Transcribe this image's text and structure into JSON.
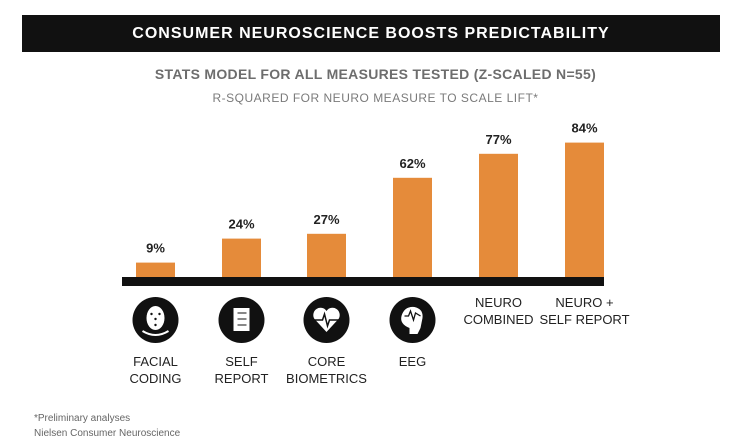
{
  "title": "CONSUMER NEUROSCIENCE BOOSTS PREDICTABILITY",
  "subtitle": "STATS MODEL FOR ALL MEASURES TESTED (Z-SCALED N=55)",
  "subtitle2": "R-SQUARED FOR NEURO MEASURE TO SCALE LIFT*",
  "footnotes": [
    "*Preliminary analyses",
    "Nielsen Consumer Neuroscience"
  ],
  "colors": {
    "bar": "#e58b3a",
    "axis": "#111111",
    "title_bg": "#111111"
  },
  "chart_data": {
    "type": "bar",
    "title": "STATS MODEL FOR ALL MEASURES TESTED (Z-SCALED N=55)",
    "subtitle": "R-SQUARED FOR NEURO MEASURE TO SCALE LIFT*",
    "categories": [
      {
        "line1": "FACIAL",
        "line2": "CODING",
        "icon": "facial-coding-icon"
      },
      {
        "line1": "SELF",
        "line2": "REPORT",
        "icon": "checklist-icon"
      },
      {
        "line1": "CORE",
        "line2": "BIOMETRICS",
        "icon": "heart-pulse-icon"
      },
      {
        "line1": "EEG",
        "line2": "",
        "icon": "brain-wave-icon"
      },
      {
        "line1": "NEURO",
        "line2": "COMBINED",
        "icon": ""
      },
      {
        "line1": "NEURO +",
        "line2": "SELF REPORT",
        "icon": ""
      }
    ],
    "values": [
      9,
      24,
      27,
      62,
      77,
      84
    ],
    "data_labels": [
      "9%",
      "24%",
      "27%",
      "62%",
      "77%",
      "84%"
    ],
    "ylim": [
      0,
      100
    ],
    "grid": false,
    "legend": "none"
  }
}
